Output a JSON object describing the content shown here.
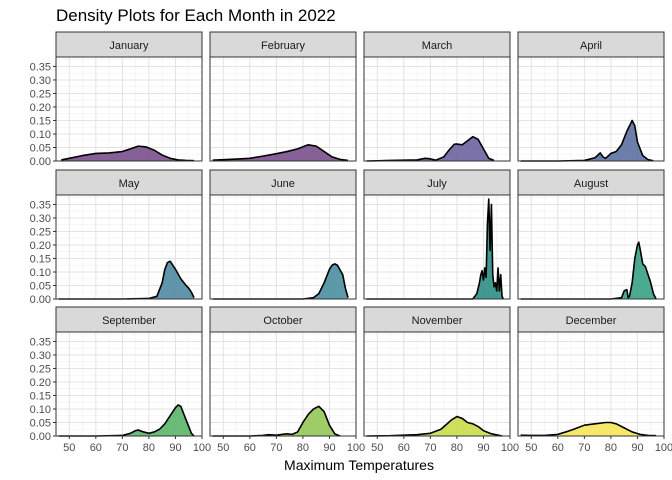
{
  "chart_data": {
    "type": "area",
    "title": "Density Plots for Each Month in 2022",
    "xlabel": "Maximum Temperatures",
    "ylabel": "",
    "xlim": [
      45,
      100
    ],
    "ylim": [
      0,
      0.385
    ],
    "x_ticks": [
      50,
      60,
      70,
      80,
      90,
      100
    ],
    "y_ticks": [
      0.0,
      0.05,
      0.1,
      0.15,
      0.2,
      0.25,
      0.3,
      0.35
    ],
    "y_tick_labels": [
      "0.00",
      "0.05",
      "0.10",
      "0.15",
      "0.20",
      "0.25",
      "0.30",
      "0.35"
    ],
    "grid": true,
    "layout": "3x4 facets",
    "series": [
      {
        "name": "January",
        "color": "#7a4f8c",
        "x": [
          47,
          50,
          55,
          60,
          65,
          70,
          73,
          76,
          79,
          82,
          85,
          88,
          91,
          94,
          97
        ],
        "y": [
          0.004,
          0.01,
          0.02,
          0.028,
          0.03,
          0.035,
          0.045,
          0.055,
          0.052,
          0.04,
          0.022,
          0.01,
          0.004,
          0.002,
          0.001
        ]
      },
      {
        "name": "February",
        "color": "#7a4f8c",
        "x": [
          46,
          50,
          55,
          60,
          65,
          70,
          74,
          78,
          82,
          85,
          88,
          91,
          94,
          97
        ],
        "y": [
          0.003,
          0.005,
          0.007,
          0.01,
          0.018,
          0.027,
          0.035,
          0.045,
          0.06,
          0.055,
          0.035,
          0.015,
          0.006,
          0.002
        ]
      },
      {
        "name": "March",
        "color": "#6d63a0",
        "x": [
          46,
          55,
          60,
          65,
          68,
          70,
          72,
          75,
          77,
          79,
          80,
          82,
          84,
          86,
          88,
          90,
          92,
          94
        ],
        "y": [
          0.0,
          0.002,
          0.003,
          0.004,
          0.01,
          0.008,
          0.003,
          0.015,
          0.04,
          0.062,
          0.063,
          0.06,
          0.075,
          0.09,
          0.08,
          0.045,
          0.01,
          0.002
        ]
      },
      {
        "name": "April",
        "color": "#5c71a1",
        "x": [
          46,
          60,
          70,
          74,
          76,
          77,
          78,
          80,
          82,
          84,
          86,
          88,
          89,
          90,
          92,
          94,
          96
        ],
        "y": [
          0.0,
          0.0,
          0.002,
          0.012,
          0.03,
          0.015,
          0.01,
          0.028,
          0.035,
          0.06,
          0.11,
          0.15,
          0.13,
          0.07,
          0.02,
          0.005,
          0.001
        ]
      },
      {
        "name": "May",
        "color": "#4f8aa3",
        "x": [
          46,
          60,
          70,
          80,
          83,
          85,
          86,
          87,
          88,
          90,
          92,
          94,
          95,
          96,
          97
        ],
        "y": [
          0.0,
          0.0,
          0.0,
          0.002,
          0.01,
          0.06,
          0.11,
          0.135,
          0.14,
          0.11,
          0.075,
          0.05,
          0.04,
          0.025,
          0.005
        ]
      },
      {
        "name": "June",
        "color": "#4a8ea0",
        "x": [
          46,
          60,
          70,
          80,
          84,
          86,
          88,
          90,
          91,
          92,
          93,
          95,
          96,
          97
        ],
        "y": [
          0.0,
          0.0,
          0.0,
          0.0,
          0.005,
          0.02,
          0.06,
          0.11,
          0.125,
          0.13,
          0.125,
          0.09,
          0.04,
          0.005
        ]
      },
      {
        "name": "July",
        "color": "#2c8e85",
        "x": [
          46,
          80,
          86,
          87.5,
          88.5,
          89,
          89.5,
          90,
          90.5,
          91,
          91.5,
          92,
          92.5,
          93,
          93.5,
          94,
          94.5,
          95,
          95.5,
          96,
          96.5,
          97,
          97.5
        ],
        "y": [
          0.0,
          0.0,
          0.0,
          0.02,
          0.06,
          0.09,
          0.105,
          0.07,
          0.115,
          0.08,
          0.28,
          0.37,
          0.18,
          0.35,
          0.09,
          0.045,
          0.06,
          0.03,
          0.115,
          0.03,
          0.09,
          0.01,
          0.0
        ]
      },
      {
        "name": "August",
        "color": "#38a185",
        "x": [
          46,
          80,
          84,
          85,
          86,
          86.5,
          87,
          88,
          89,
          90,
          90.5,
          91,
          92,
          93,
          94,
          95,
          96,
          97
        ],
        "y": [
          0.0,
          0.0,
          0.005,
          0.03,
          0.035,
          0.005,
          0.01,
          0.06,
          0.15,
          0.2,
          0.21,
          0.185,
          0.13,
          0.12,
          0.09,
          0.06,
          0.02,
          0.0
        ]
      },
      {
        "name": "September",
        "color": "#5bb46a",
        "x": [
          46,
          60,
          70,
          73,
          75,
          76,
          78,
          80,
          82,
          84,
          86,
          88,
          90,
          91,
          92,
          94,
          96,
          97
        ],
        "y": [
          0.0,
          0.0,
          0.002,
          0.01,
          0.02,
          0.022,
          0.015,
          0.01,
          0.015,
          0.025,
          0.045,
          0.075,
          0.105,
          0.115,
          0.11,
          0.06,
          0.01,
          0.0
        ]
      },
      {
        "name": "October",
        "color": "#93c756",
        "x": [
          46,
          60,
          65,
          67,
          70,
          72,
          74,
          76,
          78,
          80,
          82,
          84,
          86,
          88,
          90,
          92,
          94
        ],
        "y": [
          0.0,
          0.0,
          0.002,
          0.005,
          0.003,
          0.006,
          0.008,
          0.006,
          0.015,
          0.05,
          0.08,
          0.1,
          0.11,
          0.09,
          0.04,
          0.008,
          0.0
        ]
      },
      {
        "name": "November",
        "color": "#c9dc4a",
        "x": [
          46,
          55,
          60,
          65,
          70,
          74,
          78,
          80,
          82,
          84,
          86,
          88,
          90,
          93,
          96,
          97
        ],
        "y": [
          0.0,
          0.001,
          0.003,
          0.005,
          0.01,
          0.025,
          0.06,
          0.072,
          0.065,
          0.05,
          0.045,
          0.035,
          0.02,
          0.008,
          0.002,
          0.0
        ]
      },
      {
        "name": "December",
        "color": "#f5e65a",
        "x": [
          46,
          50,
          55,
          60,
          63,
          66,
          70,
          74,
          78,
          80,
          82,
          85,
          88,
          91,
          94,
          97
        ],
        "y": [
          0.003,
          0.002,
          0.002,
          0.006,
          0.015,
          0.025,
          0.04,
          0.045,
          0.05,
          0.05,
          0.045,
          0.03,
          0.015,
          0.006,
          0.002,
          0.001
        ]
      }
    ]
  }
}
